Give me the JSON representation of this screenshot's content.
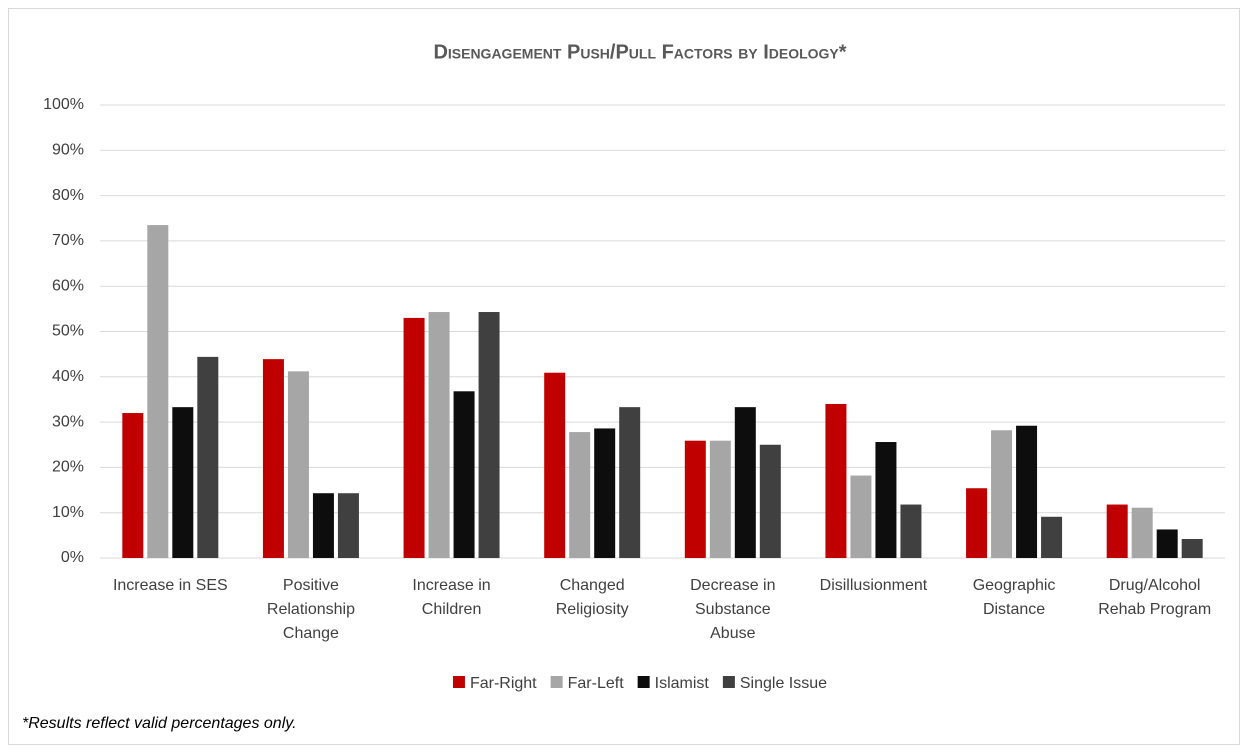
{
  "chart_data": {
    "type": "bar",
    "title": "Disengagement Push/Pull Factors by Ideology*",
    "categories": [
      "Increase in SES",
      "Positive\nRelationship\nChange",
      "Increase in\nChildren",
      "Changed\nReligiosity",
      "Decrease in\nSubstance\nAbuse",
      "Disillusionment",
      "Geographic\nDistance",
      "Drug/Alcohol\nRehab Program"
    ],
    "series": [
      {
        "name": "Far-Right",
        "color": "#c00000",
        "values": [
          32,
          43.9,
          53,
          40.9,
          25.9,
          34,
          15.4,
          11.8
        ]
      },
      {
        "name": "Far-Left",
        "color": "#a6a6a6",
        "values": [
          73.5,
          41.2,
          54.3,
          27.8,
          25.9,
          18.2,
          28.2,
          11.1
        ]
      },
      {
        "name": "Islamist",
        "color": "#0d0d0d",
        "values": [
          33.3,
          14.3,
          36.8,
          28.6,
          33.3,
          25.6,
          29.2,
          6.3
        ]
      },
      {
        "name": "Single Issue",
        "color": "#404040",
        "values": [
          44.4,
          14.3,
          54.3,
          33.3,
          25,
          11.8,
          9.1,
          4.2
        ]
      }
    ],
    "ylim": [
      0,
      100
    ],
    "yticks": [
      {
        "value": 0,
        "label": "0%"
      },
      {
        "value": 10,
        "label": "10%"
      },
      {
        "value": 20,
        "label": "20%"
      },
      {
        "value": 30,
        "label": "30%"
      },
      {
        "value": 40,
        "label": "40%"
      },
      {
        "value": 50,
        "label": "50%"
      },
      {
        "value": 60,
        "label": "60%"
      },
      {
        "value": 70,
        "label": "70%"
      },
      {
        "value": 80,
        "label": "80%"
      },
      {
        "value": 90,
        "label": "90%"
      },
      {
        "value": 100,
        "label": "100%"
      }
    ],
    "grid": true,
    "legend": "bottom",
    "footnote": "*Results reflect valid percentages only."
  }
}
